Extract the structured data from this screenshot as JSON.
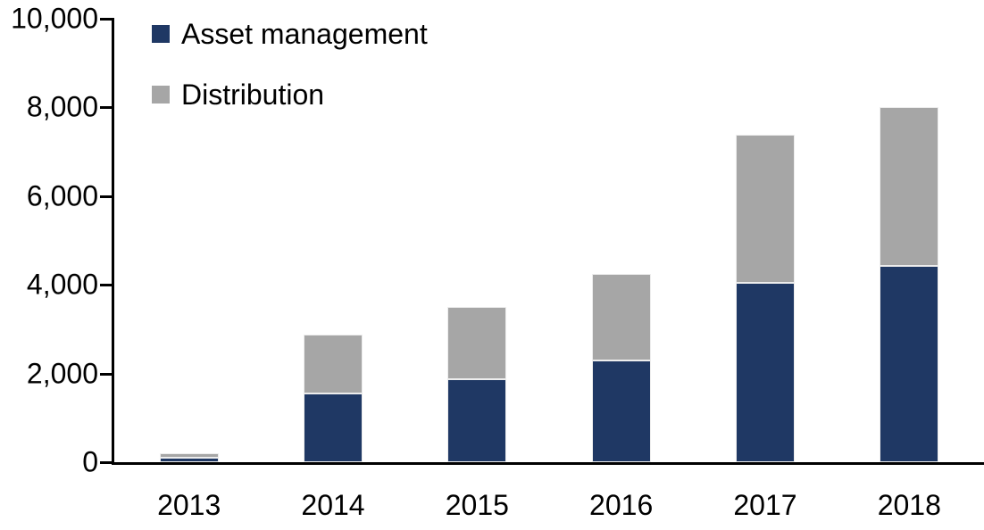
{
  "chart_data": {
    "type": "bar",
    "subtype": "stacked-vertical",
    "title": "",
    "xlabel": "",
    "ylabel": "",
    "categories": [
      "2013",
      "2014",
      "2015",
      "2016",
      "2017",
      "2018"
    ],
    "series": [
      {
        "name": "Asset management",
        "color": "#1f3864",
        "values": [
          100,
          1550,
          1870,
          2300,
          4050,
          4420
        ]
      },
      {
        "name": "Distribution",
        "color": "#a6a6a6",
        "values": [
          100,
          1320,
          1630,
          1950,
          3350,
          3580
        ]
      }
    ],
    "stacked_totals": [
      200,
      2870,
      3500,
      4250,
      7400,
      8000
    ],
    "ylim": [
      0,
      10000
    ],
    "ytick_values": [
      0,
      2000,
      4000,
      6000,
      8000,
      10000
    ],
    "ytick_labels": [
      "0",
      "2,000",
      "4,000",
      "6,000",
      "8,000",
      "10,000"
    ],
    "grid": false,
    "legend_position": "top-left",
    "axis_color": "#000000",
    "text_color": "#000000",
    "background_color": "#ffffff"
  }
}
